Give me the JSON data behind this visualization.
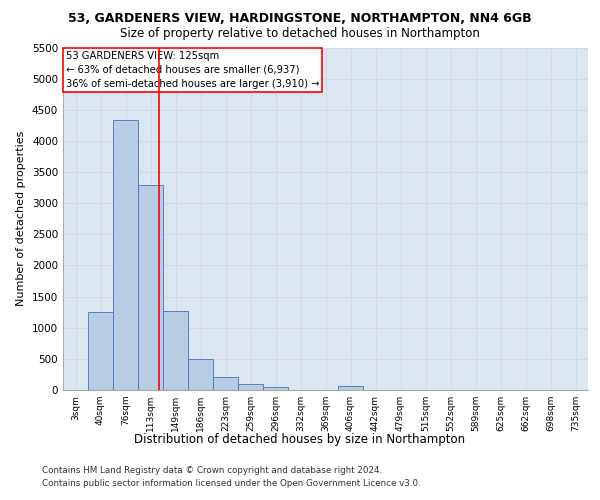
{
  "title": "53, GARDENERS VIEW, HARDINGSTONE, NORTHAMPTON, NN4 6GB",
  "subtitle": "Size of property relative to detached houses in Northampton",
  "xlabel": "Distribution of detached houses by size in Northampton",
  "ylabel": "Number of detached properties",
  "footer_line1": "Contains HM Land Registry data © Crown copyright and database right 2024.",
  "footer_line2": "Contains public sector information licensed under the Open Government Licence v3.0.",
  "bar_labels": [
    "3sqm",
    "40sqm",
    "76sqm",
    "113sqm",
    "149sqm",
    "186sqm",
    "223sqm",
    "259sqm",
    "296sqm",
    "332sqm",
    "369sqm",
    "406sqm",
    "442sqm",
    "479sqm",
    "515sqm",
    "552sqm",
    "589sqm",
    "625sqm",
    "662sqm",
    "698sqm",
    "735sqm"
  ],
  "bar_values": [
    0,
    1255,
    4340,
    3300,
    1270,
    490,
    210,
    90,
    50,
    0,
    0,
    70,
    0,
    0,
    0,
    0,
    0,
    0,
    0,
    0,
    0
  ],
  "bar_color": "#b8cce4",
  "bar_edgecolor": "#4472c4",
  "grid_color": "#d0d8e8",
  "background_color": "#dce6f1",
  "ylim": [
    0,
    5500
  ],
  "yticks": [
    0,
    500,
    1000,
    1500,
    2000,
    2500,
    3000,
    3500,
    4000,
    4500,
    5000,
    5500
  ],
  "red_line_x": 3.33,
  "annotation_line1": "53 GARDENERS VIEW: 125sqm",
  "annotation_line2": "← 63% of detached houses are smaller (6,937)",
  "annotation_line3": "36% of semi-detached houses are larger (3,910) →"
}
